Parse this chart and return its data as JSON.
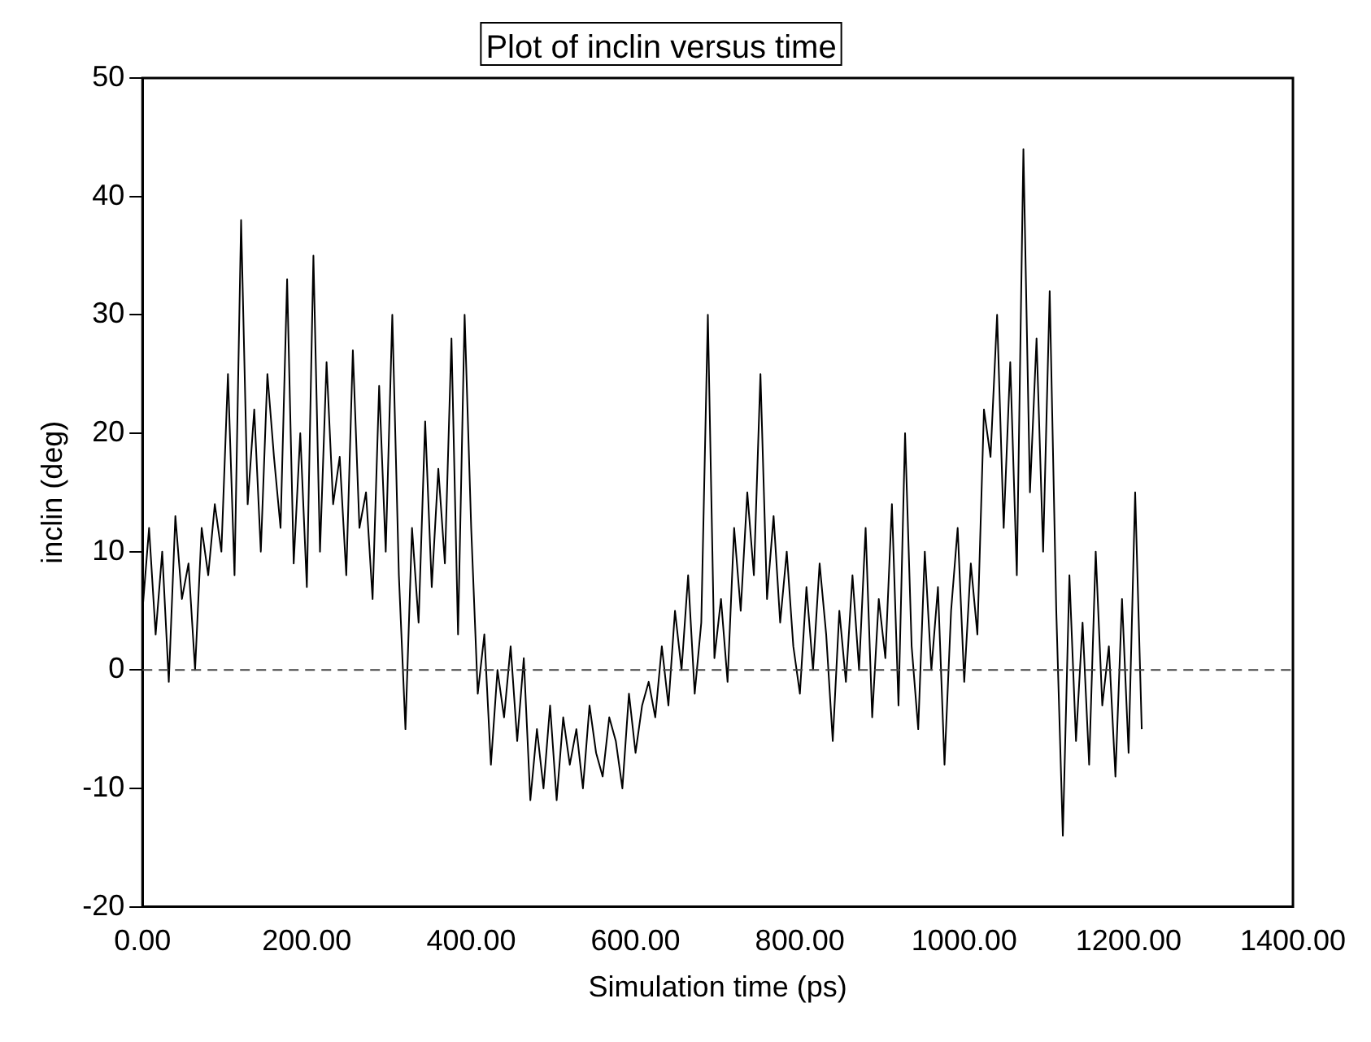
{
  "chart_data": {
    "type": "line",
    "title": "Plot of inclin versus time",
    "xlabel": "Simulation time (ps)",
    "ylabel": "inclin (deg)",
    "x": [
      0,
      8,
      16,
      24,
      32,
      40,
      48,
      56,
      64,
      72,
      80,
      88,
      96,
      104,
      112,
      120,
      128,
      136,
      144,
      152,
      160,
      168,
      176,
      184,
      192,
      200,
      208,
      216,
      224,
      232,
      240,
      248,
      256,
      264,
      272,
      280,
      288,
      296,
      304,
      312,
      320,
      328,
      336,
      344,
      352,
      360,
      368,
      376,
      384,
      392,
      400,
      408,
      416,
      424,
      432,
      440,
      448,
      456,
      464,
      472,
      480,
      488,
      496,
      504,
      512,
      520,
      528,
      536,
      544,
      552,
      560,
      568,
      576,
      584,
      592,
      600,
      608,
      616,
      624,
      632,
      640,
      648,
      656,
      664,
      672,
      680,
      688,
      696,
      704,
      712,
      720,
      728,
      736,
      744,
      752,
      760,
      768,
      776,
      784,
      792,
      800,
      808,
      816,
      824,
      832,
      840,
      848,
      856,
      864,
      872,
      880,
      888,
      896,
      904,
      912,
      920,
      928,
      936,
      944,
      952,
      960,
      968,
      976,
      984,
      992,
      1000,
      1008,
      1016,
      1024,
      1032,
      1040,
      1048,
      1056,
      1064,
      1072,
      1080,
      1088,
      1096,
      1104,
      1112,
      1120,
      1128,
      1136,
      1144,
      1152,
      1160,
      1168,
      1176,
      1184,
      1192,
      1200,
      1208,
      1216
    ],
    "series": [
      {
        "color": "#000000",
        "values": [
          5,
          12,
          3,
          10,
          -1,
          13,
          6,
          9,
          0,
          12,
          8,
          14,
          10,
          25,
          8,
          38,
          14,
          22,
          10,
          25,
          18,
          12,
          33,
          9,
          20,
          7,
          35,
          10,
          26,
          14,
          18,
          8,
          27,
          12,
          15,
          6,
          24,
          10,
          30,
          8,
          -5,
          12,
          4,
          21,
          7,
          17,
          9,
          28,
          3,
          30,
          12,
          -2,
          3,
          -8,
          0,
          -4,
          2,
          -6,
          1,
          -11,
          -5,
          -10,
          -3,
          -11,
          -4,
          -8,
          -5,
          -10,
          -3,
          -7,
          -9,
          -4,
          -6,
          -10,
          -2,
          -7,
          -3,
          -1,
          -4,
          2,
          -3,
          5,
          0,
          8,
          -2,
          4,
          30,
          1,
          6,
          -1,
          12,
          5,
          15,
          8,
          25,
          6,
          13,
          4,
          10,
          2,
          -2,
          7,
          0,
          9,
          3,
          -6,
          5,
          -1,
          8,
          0,
          12,
          -4,
          6,
          1,
          14,
          -3,
          20,
          2,
          -5,
          10,
          0,
          7,
          -8,
          5,
          12,
          -1,
          9,
          3,
          22,
          18,
          30,
          12,
          26,
          8,
          44,
          15,
          28,
          10,
          32,
          5,
          -14,
          8,
          -6,
          4,
          -8,
          10,
          -3,
          2,
          -9,
          6,
          -7,
          15,
          -5
        ]
      }
    ],
    "xlim": [
      0,
      1400
    ],
    "xticks": [
      {
        "value": 0,
        "label": "0.00"
      },
      {
        "value": 200,
        "label": "200.00"
      },
      {
        "value": 400,
        "label": "400.00"
      },
      {
        "value": 600,
        "label": "600.00"
      },
      {
        "value": 800,
        "label": "800.00"
      },
      {
        "value": 1000,
        "label": "1000.00"
      },
      {
        "value": 1200,
        "label": "1200.00"
      },
      {
        "value": 1400,
        "label": "1400.00"
      }
    ],
    "ylim": [
      -20,
      50
    ],
    "yticks": [
      -20,
      -10,
      0,
      10,
      20,
      30,
      40,
      50
    ],
    "ref_lines": [
      {
        "axis": "y",
        "value": 0,
        "line_style": "dashed"
      }
    ],
    "grid": false,
    "legend": false,
    "marker": "none",
    "line_style": "solid"
  }
}
